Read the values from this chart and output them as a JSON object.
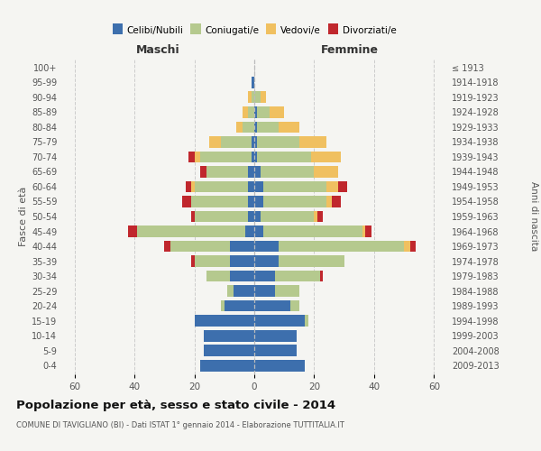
{
  "age_groups": [
    "0-4",
    "5-9",
    "10-14",
    "15-19",
    "20-24",
    "25-29",
    "30-34",
    "35-39",
    "40-44",
    "45-49",
    "50-54",
    "55-59",
    "60-64",
    "65-69",
    "70-74",
    "75-79",
    "80-84",
    "85-89",
    "90-94",
    "95-99",
    "100+"
  ],
  "birth_years": [
    "2009-2013",
    "2004-2008",
    "1999-2003",
    "1994-1998",
    "1989-1993",
    "1984-1988",
    "1979-1983",
    "1974-1978",
    "1969-1973",
    "1964-1968",
    "1959-1963",
    "1954-1958",
    "1949-1953",
    "1944-1948",
    "1939-1943",
    "1934-1938",
    "1929-1933",
    "1924-1928",
    "1919-1923",
    "1914-1918",
    "≤ 1913"
  ],
  "male": {
    "celibe": [
      18,
      17,
      17,
      20,
      10,
      7,
      8,
      8,
      8,
      3,
      2,
      2,
      2,
      2,
      1,
      1,
      0,
      0,
      0,
      1,
      0
    ],
    "coniugato": [
      0,
      0,
      0,
      0,
      1,
      2,
      8,
      12,
      20,
      36,
      18,
      19,
      18,
      14,
      17,
      10,
      4,
      2,
      1,
      0,
      0
    ],
    "vedovo": [
      0,
      0,
      0,
      0,
      0,
      0,
      0,
      0,
      0,
      0,
      0,
      0,
      1,
      0,
      2,
      4,
      2,
      2,
      1,
      0,
      0
    ],
    "divorziato": [
      0,
      0,
      0,
      0,
      0,
      0,
      0,
      1,
      2,
      3,
      1,
      3,
      2,
      2,
      2,
      0,
      0,
      0,
      0,
      0,
      0
    ]
  },
  "female": {
    "nubile": [
      17,
      14,
      14,
      17,
      12,
      7,
      7,
      8,
      8,
      3,
      2,
      3,
      3,
      2,
      1,
      1,
      1,
      1,
      0,
      0,
      0
    ],
    "coniugata": [
      0,
      0,
      0,
      1,
      3,
      8,
      15,
      22,
      42,
      33,
      18,
      21,
      21,
      18,
      18,
      14,
      7,
      4,
      2,
      0,
      0
    ],
    "vedova": [
      0,
      0,
      0,
      0,
      0,
      0,
      0,
      0,
      2,
      1,
      1,
      2,
      4,
      8,
      10,
      9,
      7,
      5,
      2,
      0,
      0
    ],
    "divorziata": [
      0,
      0,
      0,
      0,
      0,
      0,
      1,
      0,
      2,
      2,
      2,
      3,
      3,
      0,
      0,
      0,
      0,
      0,
      0,
      0,
      0
    ]
  },
  "colors": {
    "celibe": "#3d6fad",
    "coniugato": "#b5c98e",
    "vedovo": "#f0c060",
    "divorziato": "#c0272d"
  },
  "xlim": 65,
  "title": "Popolazione per età, sesso e stato civile - 2014",
  "subtitle": "COMUNE DI TAVIGLIANO (BI) - Dati ISTAT 1° gennaio 2014 - Elaborazione TUTTITALIA.IT",
  "ylabel_left": "Fasce di età",
  "ylabel_right": "Anni di nascita",
  "xlabel_left": "Maschi",
  "xlabel_right": "Femmine",
  "legend_labels": [
    "Celibi/Nubili",
    "Coniugati/e",
    "Vedovi/e",
    "Divorziati/e"
  ],
  "background_color": "#f5f5f2"
}
